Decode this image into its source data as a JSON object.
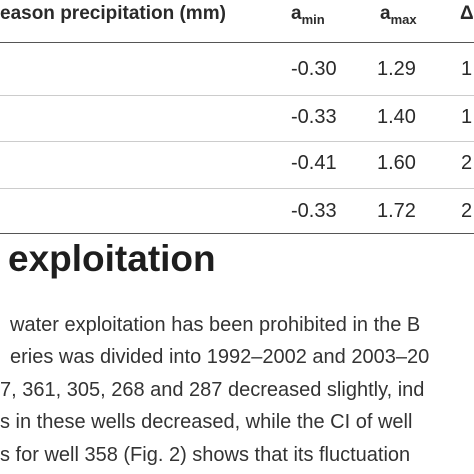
{
  "table": {
    "header": {
      "precip": "eason precipitation (mm)",
      "amin_base": "a",
      "amin_sub": "min",
      "amax_base": "a",
      "amax_sub": "max",
      "delta": "Δ"
    },
    "rows": [
      {
        "amin": "-0.30",
        "amax": "1.29",
        "delta": "1"
      },
      {
        "amin": "-0.33",
        "amax": "1.40",
        "delta": "1"
      },
      {
        "amin": "-0.41",
        "amax": "1.60",
        "delta": "2"
      },
      {
        "amin": "-0.33",
        "amax": "1.72",
        "delta": "2"
      }
    ]
  },
  "section": {
    "heading": "exploitation",
    "lines": [
      "water exploitation has been prohibited in the B",
      "eries was divided into 1992–2002 and 2003–20",
      "7, 361, 305, 268 and 287 decreased slightly, ind",
      "s in these wells decreased, while the CI of well",
      "s for well 358 (Fig. 2) shows that its fluctuation"
    ]
  }
}
